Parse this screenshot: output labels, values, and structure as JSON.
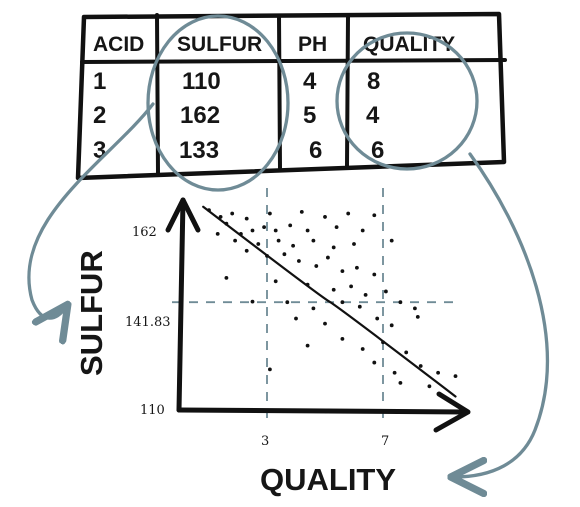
{
  "table": {
    "headers": [
      "ACID",
      "SULFUR",
      "PH",
      "QUALITY"
    ],
    "rows": [
      [
        "1",
        "110",
        "4",
        "8"
      ],
      [
        "2",
        "162",
        "5",
        "4"
      ],
      [
        "3",
        "133",
        "6",
        "6"
      ]
    ]
  },
  "chart_data": {
    "type": "scatter",
    "xlabel": "QUALITY",
    "ylabel": "SULFUR",
    "x_ticks": [
      "3",
      "7"
    ],
    "y_ticks": [
      "162",
      "141.83",
      "110"
    ],
    "x_marker_values": [
      3,
      7
    ],
    "y_marker_values": [
      162,
      141.83
    ],
    "ylim": [
      110,
      172
    ],
    "xlim": [
      0,
      10
    ],
    "trend_line": [
      [
        0.8,
        170
      ],
      [
        9.5,
        114
      ]
    ],
    "points": [
      [
        1.0,
        169
      ],
      [
        1.4,
        167
      ],
      [
        1.8,
        168
      ],
      [
        2.3,
        166.5
      ],
      [
        3.1,
        168
      ],
      [
        4.2,
        168.5
      ],
      [
        5.0,
        167
      ],
      [
        5.8,
        168
      ],
      [
        6.7,
        167.5
      ],
      [
        1.6,
        165
      ],
      [
        2.1,
        162
      ],
      [
        2.5,
        163
      ],
      [
        2.9,
        164
      ],
      [
        3.3,
        163
      ],
      [
        3.8,
        164.5
      ],
      [
        4.4,
        163
      ],
      [
        5.4,
        164
      ],
      [
        6.3,
        163
      ],
      [
        1.3,
        162
      ],
      [
        1.9,
        160
      ],
      [
        2.7,
        159
      ],
      [
        3.4,
        160
      ],
      [
        3.9,
        158.5
      ],
      [
        4.6,
        160
      ],
      [
        5.3,
        158
      ],
      [
        6.0,
        159
      ],
      [
        7.3,
        160
      ],
      [
        2.3,
        157
      ],
      [
        3.0,
        155.5
      ],
      [
        3.6,
        156
      ],
      [
        4.1,
        154
      ],
      [
        4.7,
        152.5
      ],
      [
        5.1,
        155
      ],
      [
        5.6,
        151
      ],
      [
        6.1,
        152
      ],
      [
        6.7,
        150
      ],
      [
        1.6,
        149
      ],
      [
        3.3,
        148
      ],
      [
        4.4,
        147
      ],
      [
        5.3,
        145.5
      ],
      [
        5.9,
        146.5
      ],
      [
        6.4,
        144
      ],
      [
        7.1,
        145
      ],
      [
        2.5,
        142
      ],
      [
        3.7,
        141.83
      ],
      [
        4.6,
        140
      ],
      [
        5.6,
        141.83
      ],
      [
        6.2,
        140.5
      ],
      [
        7.6,
        141.83
      ],
      [
        8.1,
        140
      ],
      [
        4.0,
        137
      ],
      [
        5.0,
        135.5
      ],
      [
        6.8,
        137
      ],
      [
        7.3,
        135
      ],
      [
        8.2,
        137.5
      ],
      [
        4.4,
        129
      ],
      [
        5.6,
        131
      ],
      [
        6.3,
        128
      ],
      [
        7.0,
        130
      ],
      [
        7.8,
        127
      ],
      [
        3.1,
        122
      ],
      [
        6.7,
        124
      ],
      [
        7.4,
        121
      ],
      [
        8.3,
        123
      ],
      [
        8.9,
        121
      ],
      [
        9.5,
        120
      ],
      [
        7.6,
        118
      ],
      [
        8.6,
        117
      ]
    ]
  }
}
